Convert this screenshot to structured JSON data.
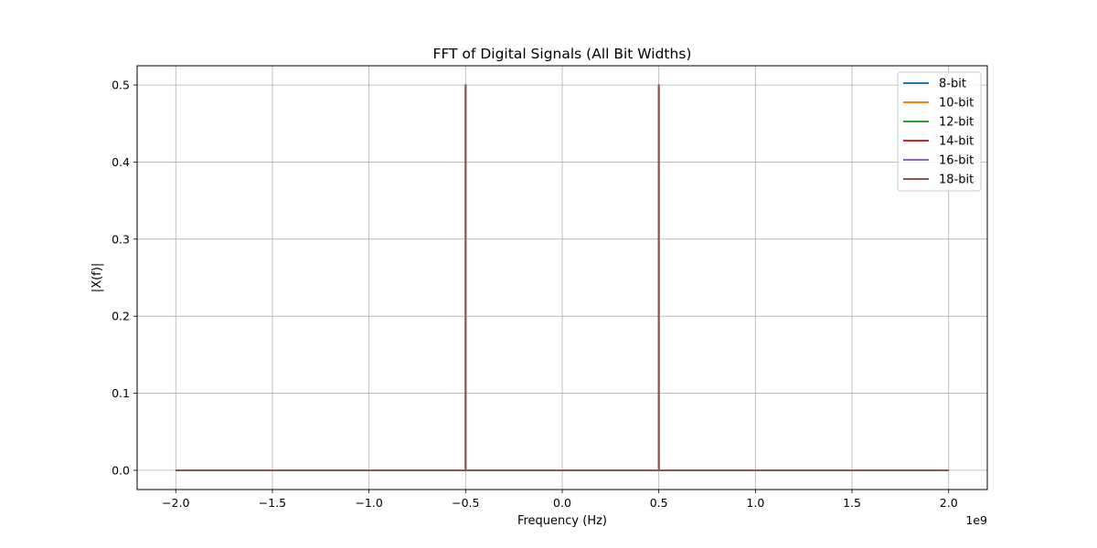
{
  "chart_data": {
    "type": "line",
    "title": "FFT of Digital Signals (All Bit Widths)",
    "xlabel": "Frequency (Hz)",
    "ylabel": "|X(f)|",
    "x_scale_label": "1e9",
    "xlim": [
      -2.2,
      2.2
    ],
    "ylim": [
      -0.025,
      0.525
    ],
    "x_ticks": [
      -2.0,
      -1.5,
      -1.0,
      -0.5,
      0.0,
      0.5,
      1.0,
      1.5,
      2.0
    ],
    "x_tick_labels": [
      "−2.0",
      "−1.5",
      "−1.0",
      "−0.5",
      "0.0",
      "0.5",
      "1.0",
      "1.5",
      "2.0"
    ],
    "y_ticks": [
      0.0,
      0.1,
      0.2,
      0.3,
      0.4,
      0.5
    ],
    "y_tick_labels": [
      "0.0",
      "0.1",
      "0.2",
      "0.3",
      "0.4",
      "0.5"
    ],
    "grid": true,
    "legend_position": "top-right",
    "x": [
      -2.0,
      -0.5,
      -0.5,
      -0.5,
      0.5,
      0.5,
      0.5,
      2.0
    ],
    "series": [
      {
        "name": "8-bit",
        "color": "#1f77b4",
        "values": [
          0,
          0,
          0.5,
          0,
          0,
          0.5,
          0,
          0
        ]
      },
      {
        "name": "10-bit",
        "color": "#ff7f0e",
        "values": [
          0,
          0,
          0.5,
          0,
          0,
          0.5,
          0,
          0
        ]
      },
      {
        "name": "12-bit",
        "color": "#2ca02c",
        "values": [
          0,
          0,
          0.5,
          0,
          0,
          0.5,
          0,
          0
        ]
      },
      {
        "name": "14-bit",
        "color": "#d62728",
        "values": [
          0,
          0,
          0.5,
          0,
          0,
          0.5,
          0,
          0
        ]
      },
      {
        "name": "16-bit",
        "color": "#9467bd",
        "values": [
          0,
          0,
          0.5,
          0,
          0,
          0.5,
          0,
          0
        ]
      },
      {
        "name": "18-bit",
        "color": "#8c564b",
        "values": [
          0,
          0,
          0.5,
          0,
          0,
          0.5,
          0,
          0
        ]
      }
    ]
  }
}
